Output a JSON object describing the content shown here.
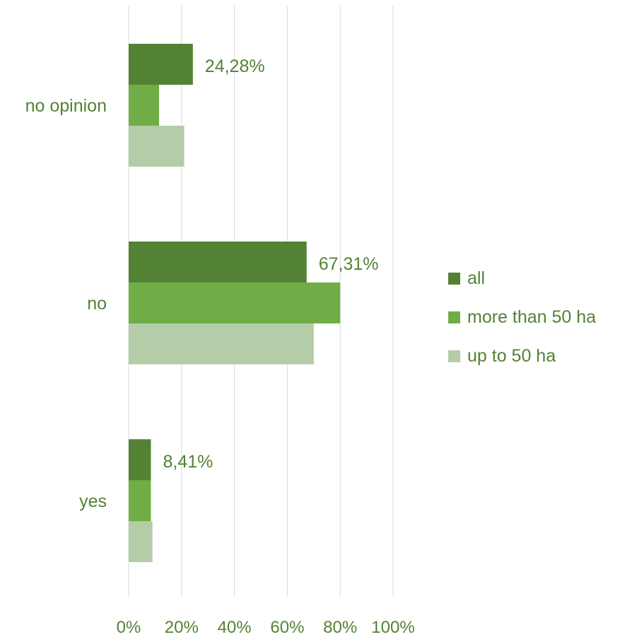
{
  "chart_data": {
    "type": "bar",
    "orientation": "horizontal",
    "categories": [
      "no opinion",
      "no",
      "yes"
    ],
    "series": [
      {
        "name": "all",
        "values": [
          24.28,
          67.31,
          8.41
        ],
        "color": "#548235"
      },
      {
        "name": "more than 50 ha",
        "values": [
          11.5,
          80.0,
          8.4
        ],
        "color": "#70ad47"
      },
      {
        "name": "up to 50 ha",
        "values": [
          21.0,
          70.0,
          9.0
        ],
        "color": "#b4cda8"
      }
    ],
    "data_labels": [
      "24,28%",
      "67,31%",
      "8,41%"
    ],
    "x_ticks": [
      "0%",
      "20%",
      "40%",
      "60%",
      "80%",
      "100%"
    ],
    "xlim": [
      0,
      100
    ],
    "grid": true,
    "legend_position": "right",
    "text_color": "#548235",
    "grid_color": "#d9d9d9"
  }
}
